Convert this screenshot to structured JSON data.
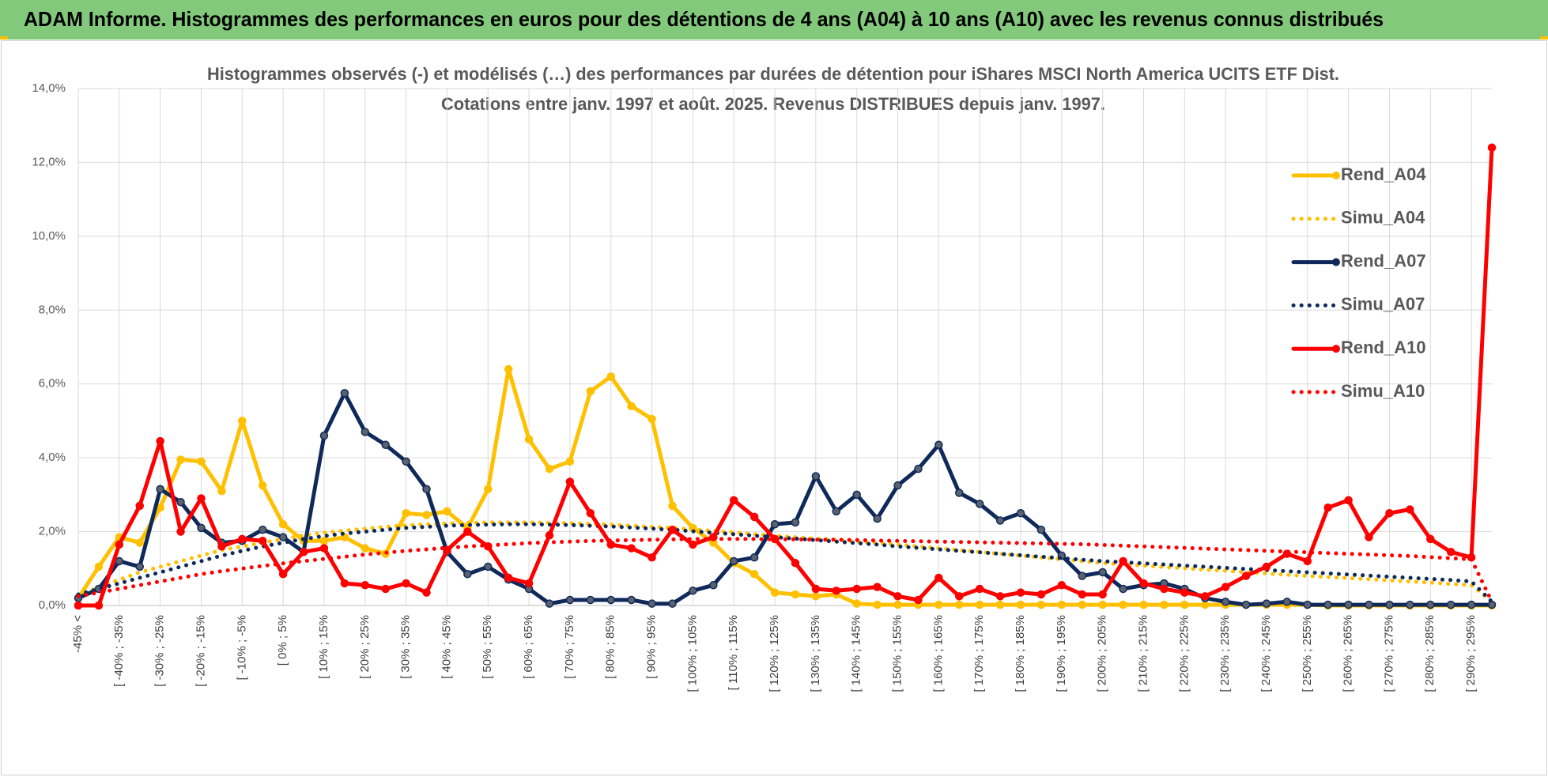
{
  "chart_data": {
    "type": "line",
    "header": "ADAM Informe. Histogrammes des performances en euros pour des détentions de 4 ans (A04) à 10 ans (A10) avec les revenus connus distribués",
    "title": "Histogrammes observés (-) et modélisés (…) des performances par durées de détention pour iShares MSCI North America UCITS ETF Dist.",
    "subtitle": "Cotations entre janv. 1997 et août. 2025. Revenus DISTRIBUES depuis janv. 1997.",
    "categories": [
      "-45% <",
      null,
      "[ -40% ; -35%",
      null,
      "[ -30% ; -25%",
      null,
      "[ -20% ; -15%",
      null,
      "[ -10% ; -5%",
      null,
      "[ 0% ; 5%",
      null,
      "[ 10% ; 15%",
      null,
      "[ 20% ; 25%",
      null,
      "[ 30% ; 35%",
      null,
      "[ 40% ; 45%",
      null,
      "[ 50% ; 55%",
      null,
      "[ 60% ; 65%",
      null,
      "[ 70% ; 75%",
      null,
      "[ 80% ; 85%",
      null,
      "[ 90% ; 95%",
      null,
      "[ 100% ; 105%",
      null,
      "[ 110% ; 115%",
      null,
      "[ 120% ; 125%",
      null,
      "[ 130% ; 135%",
      null,
      "[ 140% ; 145%",
      null,
      "[ 150% ; 155%",
      null,
      "[ 160% ; 165%",
      null,
      "[ 170% ; 175%",
      null,
      "[ 180% ; 185%",
      null,
      "[ 190% ; 195%",
      null,
      "[ 200% ; 205%",
      null,
      "[ 210% ; 215%",
      null,
      "[ 220% ; 225%",
      null,
      "[ 230% ; 235%",
      null,
      "[ 240% ; 245%",
      null,
      "[ 250% ; 255%",
      null,
      "[ 260% ; 265%",
      null,
      "[ 270% ; 275%",
      null,
      "[ 280% ; 285%",
      null,
      "[ 290% ; 295%",
      null
    ],
    "series": [
      {
        "name": "Rend_A04",
        "color": "#ffc000",
        "style": "solid",
        "markers": true,
        "values": [
          0.2,
          1.05,
          1.85,
          1.7,
          2.65,
          3.95,
          3.9,
          3.1,
          5.0,
          3.25,
          2.2,
          1.75,
          1.75,
          1.85,
          1.55,
          1.4,
          2.5,
          2.45,
          2.55,
          2.1,
          3.15,
          6.4,
          4.5,
          3.7,
          3.9,
          5.8,
          6.2,
          5.4,
          5.05,
          2.7,
          2.1,
          1.7,
          1.15,
          0.85,
          0.35,
          0.3,
          0.25,
          0.3,
          0.05,
          0.02,
          0.02,
          0.02,
          0.02,
          0.02,
          0.02,
          0.02,
          0.02,
          0.02,
          0.02,
          0.02,
          0.02,
          0.02,
          0.02,
          0.02,
          0.02,
          0.02,
          0.02,
          0.02,
          0.02,
          0.02,
          0.02,
          0,
          0,
          0,
          0,
          0,
          0,
          0,
          0,
          0
        ]
      },
      {
        "name": "Simu_A04",
        "color": "#ffc000",
        "style": "dotted",
        "markers": false,
        "values": [
          0.25,
          0.5,
          0.7,
          0.9,
          1.05,
          1.2,
          1.35,
          1.5,
          1.6,
          1.7,
          1.8,
          1.9,
          1.97,
          2.03,
          2.08,
          2.13,
          2.17,
          2.2,
          2.22,
          2.24,
          2.25,
          2.25,
          2.25,
          2.24,
          2.23,
          2.21,
          2.19,
          2.16,
          2.13,
          2.1,
          2.06,
          2.02,
          1.98,
          1.93,
          1.89,
          1.85,
          1.81,
          1.77,
          1.73,
          1.69,
          1.65,
          1.6,
          1.55,
          1.5,
          1.45,
          1.4,
          1.35,
          1.3,
          1.25,
          1.2,
          1.15,
          1.11,
          1.08,
          1.04,
          1.01,
          0.97,
          0.94,
          0.9,
          0.87,
          0.83,
          0.8,
          0.77,
          0.74,
          0.71,
          0.68,
          0.65,
          0.62,
          0.58,
          0.55,
          0.1
        ]
      },
      {
        "name": "Rend_A07",
        "color": "#0f2a5a",
        "style": "solid",
        "markers": true,
        "values": [
          0.2,
          0.45,
          1.2,
          1.05,
          3.15,
          2.8,
          2.1,
          1.7,
          1.75,
          2.05,
          1.85,
          1.45,
          4.6,
          5.75,
          4.7,
          4.35,
          3.9,
          3.15,
          1.45,
          0.85,
          1.05,
          0.7,
          0.45,
          0.05,
          0.15,
          0.15,
          0.15,
          0.15,
          0.05,
          0.05,
          0.4,
          0.55,
          1.2,
          1.3,
          2.2,
          2.25,
          3.5,
          2.55,
          3.0,
          2.35,
          3.25,
          3.7,
          4.35,
          3.05,
          2.75,
          2.3,
          2.5,
          2.05,
          1.35,
          0.8,
          0.9,
          0.45,
          0.55,
          0.6,
          0.45,
          0.2,
          0.1,
          0.02,
          0.05,
          0.1,
          0.02,
          0.02,
          0.02,
          0.02,
          0.02,
          0.02,
          0.02,
          0.02,
          0.02,
          0.02
        ]
      },
      {
        "name": "Simu_A07",
        "color": "#0f2a5a",
        "style": "dotted",
        "markers": false,
        "values": [
          0.3,
          0.45,
          0.6,
          0.75,
          0.9,
          1.05,
          1.2,
          1.35,
          1.48,
          1.6,
          1.7,
          1.8,
          1.88,
          1.95,
          2.0,
          2.05,
          2.1,
          2.13,
          2.16,
          2.18,
          2.19,
          2.2,
          2.2,
          2.19,
          2.18,
          2.16,
          2.14,
          2.11,
          2.08,
          2.05,
          2.01,
          1.97,
          1.93,
          1.89,
          1.85,
          1.81,
          1.77,
          1.73,
          1.69,
          1.65,
          1.6,
          1.56,
          1.52,
          1.48,
          1.44,
          1.4,
          1.36,
          1.32,
          1.28,
          1.24,
          1.2,
          1.17,
          1.14,
          1.11,
          1.08,
          1.05,
          1.02,
          0.99,
          0.96,
          0.93,
          0.9,
          0.87,
          0.84,
          0.81,
          0.78,
          0.75,
          0.72,
          0.69,
          0.65,
          0.1
        ]
      },
      {
        "name": "Rend_A10",
        "color": "#ff0000",
        "style": "solid",
        "markers": true,
        "values": [
          0,
          0,
          1.65,
          2.7,
          4.45,
          2.0,
          2.9,
          1.6,
          1.8,
          1.75,
          0.85,
          1.45,
          1.55,
          0.6,
          0.55,
          0.45,
          0.6,
          0.35,
          1.5,
          2.0,
          1.6,
          0.75,
          0.6,
          1.9,
          3.35,
          2.5,
          1.65,
          1.55,
          1.3,
          2.05,
          1.65,
          1.85,
          2.85,
          2.4,
          1.8,
          1.15,
          0.45,
          0.4,
          0.45,
          0.5,
          0.25,
          0.15,
          0.75,
          0.25,
          0.45,
          0.25,
          0.35,
          0.3,
          0.55,
          0.3,
          0.3,
          1.2,
          0.6,
          0.45,
          0.35,
          0.25,
          0.5,
          0.8,
          1.05,
          1.4,
          1.2,
          2.65,
          2.85,
          1.85,
          2.5,
          2.6,
          1.8,
          1.45,
          1.3,
          12.4
        ]
      },
      {
        "name": "Simu_A10",
        "color": "#ff0000",
        "style": "dotted",
        "markers": false,
        "values": [
          0.25,
          0.35,
          0.45,
          0.55,
          0.65,
          0.75,
          0.85,
          0.93,
          1.0,
          1.07,
          1.14,
          1.2,
          1.26,
          1.32,
          1.38,
          1.43,
          1.48,
          1.52,
          1.56,
          1.6,
          1.63,
          1.66,
          1.69,
          1.71,
          1.73,
          1.75,
          1.76,
          1.77,
          1.78,
          1.79,
          1.8,
          1.8,
          1.8,
          1.8,
          1.79,
          1.79,
          1.78,
          1.78,
          1.77,
          1.76,
          1.75,
          1.74,
          1.73,
          1.72,
          1.71,
          1.7,
          1.69,
          1.68,
          1.67,
          1.66,
          1.64,
          1.62,
          1.6,
          1.58,
          1.56,
          1.54,
          1.52,
          1.5,
          1.48,
          1.46,
          1.44,
          1.42,
          1.4,
          1.38,
          1.36,
          1.34,
          1.31,
          1.28,
          1.25,
          0.1
        ]
      }
    ],
    "ylim": [
      0,
      14
    ],
    "yticks": [
      {
        "value": 0,
        "label": "0,0%"
      },
      {
        "value": 2,
        "label": "2,0%"
      },
      {
        "value": 4,
        "label": "4,0%"
      },
      {
        "value": 6,
        "label": "6,0%"
      },
      {
        "value": 8,
        "label": "8,0%"
      },
      {
        "value": 10,
        "label": "10,0%"
      },
      {
        "value": 12,
        "label": "12,0%"
      },
      {
        "value": 14,
        "label": "14,0%"
      }
    ],
    "grid": true,
    "legend": "top-right"
  }
}
